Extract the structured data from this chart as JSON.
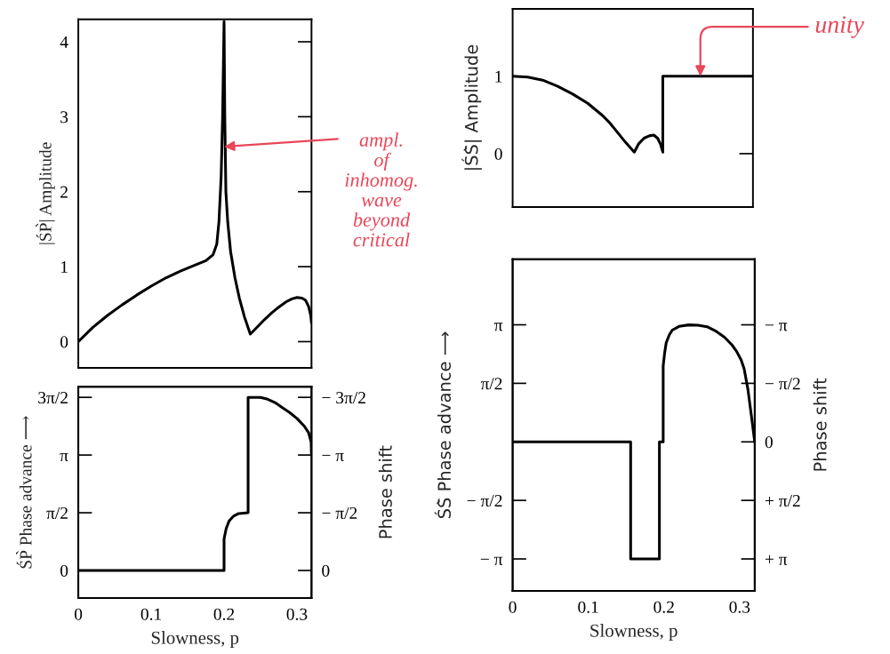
{
  "chart_data": [
    {
      "type": "line",
      "ylabel": "|ŚP̀| Amplitude",
      "color": "#000000",
      "x": [
        0,
        0.02,
        0.04,
        0.06,
        0.08,
        0.1,
        0.12,
        0.14,
        0.16,
        0.175,
        0.185,
        0.19,
        0.193,
        0.196,
        0.198,
        0.2,
        0.201,
        0.2025,
        0.205,
        0.209,
        0.215,
        0.221,
        0.228,
        0.236,
        0.245,
        0.255,
        0.265,
        0.275,
        0.285,
        0.293,
        0.3,
        0.307,
        0.312,
        0.316,
        0.319,
        0.32
      ],
      "values": [
        0,
        0.19,
        0.35,
        0.49,
        0.62,
        0.74,
        0.85,
        0.94,
        1.02,
        1.08,
        1.16,
        1.3,
        1.6,
        2.2,
        3.0,
        4.27,
        3.0,
        2.0,
        1.6,
        1.2,
        0.85,
        0.58,
        0.33,
        0.1,
        0.19,
        0.29,
        0.38,
        0.46,
        0.53,
        0.57,
        0.59,
        0.58,
        0.55,
        0.47,
        0.35,
        0.25
      ],
      "xlim": [
        0,
        0.32
      ],
      "ylim": [
        -0.35,
        4.3
      ],
      "xticks": [
        0,
        0.1,
        0.2,
        0.3
      ],
      "yticks": [
        0,
        1,
        2,
        3,
        4
      ],
      "tick_labels": "y",
      "annotations": [
        {
          "text": "ampl.\nof\ninhomog.\nwave\nbeyond\ncritical",
          "x": 0.2,
          "y": 2.6
        }
      ]
    },
    {
      "type": "line",
      "ylabel": "|ŚS̀| Amplitude",
      "color": "#000000",
      "x": [
        0,
        0.02,
        0.04,
        0.06,
        0.08,
        0.1,
        0.12,
        0.13,
        0.14,
        0.15,
        0.162,
        0.168,
        0.175,
        0.182,
        0.188,
        0.193,
        0.197,
        0.2,
        0.2,
        0.32
      ],
      "values": [
        1,
        0.99,
        0.95,
        0.87,
        0.77,
        0.65,
        0.49,
        0.39,
        0.27,
        0.15,
        0.02,
        0.13,
        0.2,
        0.23,
        0.24,
        0.2,
        0.12,
        0.02,
        1,
        1
      ],
      "xlim": [
        0,
        0.32
      ],
      "ylim": [
        -0.69,
        1.87
      ],
      "xticks": [
        0,
        0.1,
        0.2,
        0.3
      ],
      "yticks": [
        0,
        1
      ],
      "tick_labels": "y",
      "annotations": [
        {
          "text": "unity",
          "x": 0.25,
          "y": 1
        }
      ]
    },
    {
      "type": "line",
      "xlabel": "Slowness, p",
      "ylabel": "ŚP̀ Phase advance ⟶",
      "y2label": "Phase shift",
      "color": "#000000",
      "x": [
        0,
        0.2,
        0.2,
        0.203,
        0.207,
        0.213,
        0.22,
        0.233,
        0.233,
        0.25,
        0.26,
        0.27,
        0.28,
        0.29,
        0.3,
        0.31,
        0.316,
        0.3195,
        0.32
      ],
      "values": [
        0,
        0,
        0.86,
        1.15,
        1.35,
        1.48,
        1.55,
        1.57,
        4.71,
        4.71,
        4.66,
        4.57,
        4.43,
        4.3,
        4.14,
        3.93,
        3.75,
        3.5,
        3.14
      ],
      "xlim": [
        0,
        0.32
      ],
      "ylim": [
        -0.75,
        5.0
      ],
      "xticks": [
        0,
        0.1,
        0.2,
        0.3
      ],
      "yticks": [
        0,
        {
          "value": 1.571,
          "label": "π/2"
        },
        {
          "value": 3.142,
          "label": "π"
        },
        {
          "value": 4.712,
          "label": "3π/2"
        }
      ],
      "y2lim": [
        0.75,
        -5.0
      ],
      "y2ticks": [
        0,
        {
          "value": -1.571,
          "label": "− π/2"
        },
        {
          "value": -3.142,
          "label": "− π"
        },
        {
          "value": -4.712,
          "label": "− 3π/2"
        }
      ]
    },
    {
      "type": "line",
      "xlabel": "Slowness, p",
      "ylabel": "ŚS̀ Phase advance ⟶",
      "y2label": "Phase shift",
      "color": "#000000",
      "x": [
        0,
        0.156,
        0.156,
        0.194,
        0.194,
        0.199,
        0.199,
        0.201,
        0.203,
        0.207,
        0.211,
        0.22,
        0.233,
        0.245,
        0.257,
        0.268,
        0.28,
        0.29,
        0.296,
        0.302,
        0.306,
        0.311,
        0.316,
        0.32
      ],
      "values": [
        0,
        0,
        -3.14,
        -3.14,
        0,
        0,
        2.04,
        2.4,
        2.66,
        2.87,
        3.0,
        3.1,
        3.14,
        3.13,
        3.09,
        2.98,
        2.81,
        2.6,
        2.43,
        2.2,
        1.96,
        1.41,
        0.64,
        0
      ],
      "xlim": [
        0,
        0.32
      ],
      "ylim": [
        -4.0,
        4.9
      ],
      "xticks": [
        0,
        0.1,
        0.2,
        0.3
      ],
      "yticks": [
        {
          "value": -3.142,
          "label": "− π"
        },
        {
          "value": -1.571,
          "label": "− π/2"
        },
        {
          "value": 1.571,
          "label": "π/2"
        },
        {
          "value": 3.142,
          "label": "π"
        }
      ],
      "y2lim": [
        4.0,
        -4.9
      ],
      "y2ticks": [
        {
          "value": -3.142,
          "label": "− π"
        },
        {
          "value": -1.571,
          "label": "− π/2"
        },
        0,
        {
          "value": 1.571,
          "label": "+ π/2"
        },
        {
          "value": 3.142,
          "label": "+ π"
        }
      ]
    }
  ]
}
